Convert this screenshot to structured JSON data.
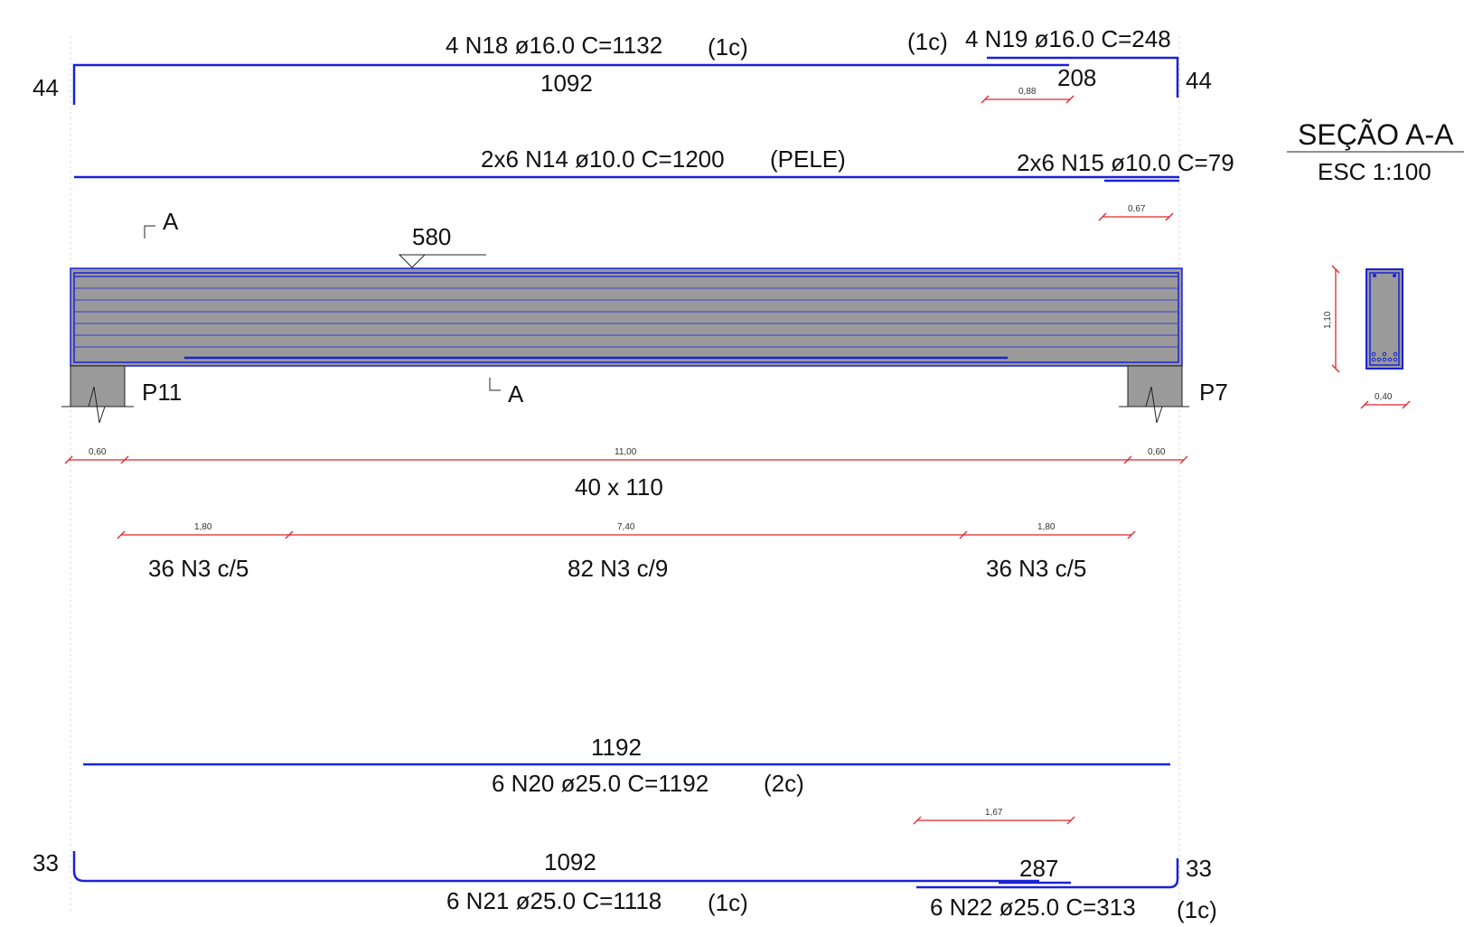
{
  "top_bars": {
    "n18_label": "4 N18 ø16.0 C=1132",
    "n18_layer": "(1c)",
    "n18_length": "1092",
    "n18_hook_left": "44",
    "n19_layer": "(1c)",
    "n19_label": "4 N19 ø16.0 C=248",
    "n19_length": "208",
    "n19_hook_right": "44",
    "n19_dim": "0,88"
  },
  "skin_bars": {
    "n14_label": "2x6 N14 ø10.0 C=1200",
    "n14_tag": "(PELE)",
    "n15_label": "2x6 N15 ø10.0 C=79",
    "n15_dim": "0,67"
  },
  "beam": {
    "section_mark": "A",
    "level_value": "580",
    "support_left": "P11",
    "support_right": "P7",
    "dim_support_left": "0,60",
    "dim_span": "11,00",
    "dim_support_right": "0,60",
    "size_label": "40 x 110"
  },
  "stirrups": {
    "dim_left": "1,80",
    "dim_mid": "7,40",
    "dim_right": "1,80",
    "left_label": "36 N3 c/5",
    "mid_label": "82 N3 c/9",
    "right_label": "36 N3 c/5"
  },
  "section": {
    "title": "SEÇÃO A-A",
    "scale": "ESC 1:100",
    "height_dim": "1,10",
    "width_dim": "0,40"
  },
  "bottom_bars": {
    "n20_length": "1192",
    "n20_label": "6 N20 ø25.0 C=1192",
    "n20_layer": "(2c)",
    "n22_dim": "1,67",
    "n21_hook_left": "33",
    "n21_length": "1092",
    "n21_label": "6 N21 ø25.0 C=1118",
    "n21_layer": "(1c)",
    "n22_length": "287",
    "n22_hook_right": "33",
    "n22_label": "6 N22 ø25.0 C=313",
    "n22_layer": "(1c)"
  },
  "colors": {
    "rebar": "#1a22d6",
    "dimension": "#e0262b",
    "concrete": "#9a9a9a",
    "text": "#111111"
  }
}
